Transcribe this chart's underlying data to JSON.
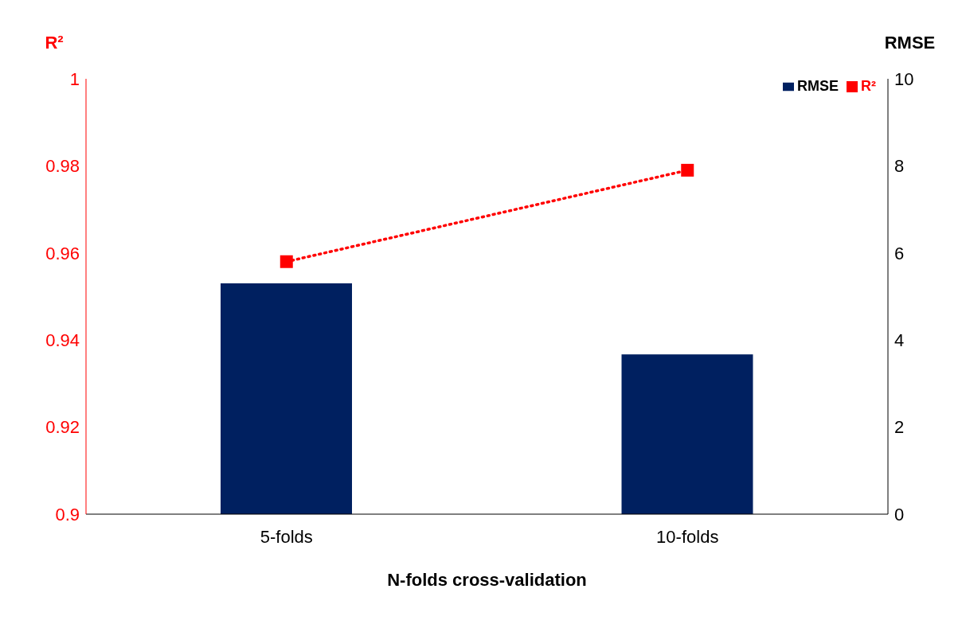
{
  "chart_data": {
    "type": "bar",
    "xlabel": "N-folds cross-validation",
    "ylabel": "R²",
    "y2label": "RMSE",
    "categories": [
      "5-folds",
      "10-folds"
    ],
    "series": [
      {
        "name": "RMSE",
        "axis": "y2",
        "color": "#002060",
        "values": [
          5.3,
          3.67
        ]
      },
      {
        "name": "R²",
        "type": "line",
        "color": "#ff0000",
        "values": [
          0.958,
          0.979
        ],
        "marker": "square",
        "line_style": "dotted"
      }
    ],
    "ylim": [
      0.9,
      1
    ],
    "yticks": [
      0.9,
      0.92,
      0.94,
      0.96,
      0.98,
      1
    ],
    "y2lim": [
      0,
      10
    ],
    "y2ticks": [
      0,
      2,
      4,
      6,
      8,
      10
    ],
    "legend": "top right",
    "grid": false
  }
}
